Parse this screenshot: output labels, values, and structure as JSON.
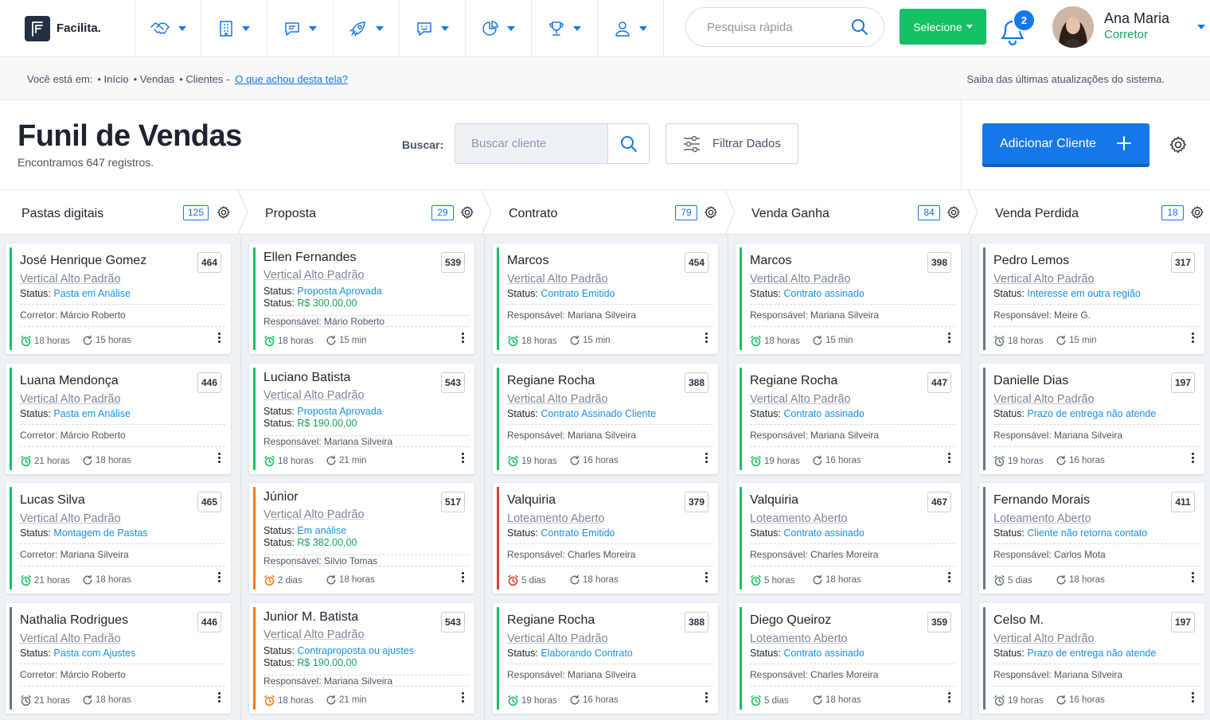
{
  "brand": {
    "name": "Facilita."
  },
  "nav": {
    "items": [
      {
        "icon": "handshake-icon"
      },
      {
        "icon": "building-icon"
      },
      {
        "icon": "message-icon"
      },
      {
        "icon": "rocket-icon"
      },
      {
        "icon": "chat-smile-icon"
      },
      {
        "icon": "pie-chart-icon"
      },
      {
        "icon": "trophy-icon"
      },
      {
        "icon": "user-icon"
      }
    ],
    "search_placeholder": "Pesquisa rápida",
    "select_label": "Selecione",
    "notifications_count": "2",
    "user": {
      "name": "Ana Maria",
      "role": "Corretor"
    }
  },
  "breadcrumb": {
    "prefix": "Você está em:",
    "items": [
      "• Início",
      "• Vendas",
      "• Clientes -"
    ],
    "feedback_link": "O que achou desta tela?",
    "updates": "Saiba das últimas atualizações do sistema."
  },
  "header": {
    "title": "Funil de Vendas",
    "subtitle": "Encontramos 647 registros.",
    "search_label": "Buscar:",
    "search_placeholder": "Buscar cliente",
    "filter_label": "Filtrar Dados",
    "add_label": "Adicionar Cliente"
  },
  "colors": {
    "accent": "#1677e8",
    "green": "#16c064",
    "orange": "#f07a1a",
    "red": "#e53935",
    "gray": "#6b7785"
  },
  "columns": [
    {
      "title": "Pastas digitais",
      "count": "125",
      "cards": [
        {
          "name": "José Henrique Gomez",
          "num": "464",
          "project": "Vertical Alto Padrão",
          "status_label": "Status:",
          "status": "Pasta em Análise",
          "person": "Corretor: Márcio Roberto",
          "time1": "18 horas",
          "time2": "15 horas",
          "accent": "green"
        },
        {
          "name": "Luana Mendonça",
          "num": "446",
          "project": "Vertical Alto Padrão",
          "status_label": "Status:",
          "status": "Pasta em Análise",
          "person": "Corretor: Márcio Roberto",
          "time1": "21 horas",
          "time2": "18 horas",
          "accent": "green"
        },
        {
          "name": "Lucas Silva",
          "num": "465",
          "project": "Vertical Alto Padrão",
          "status_label": "Status:",
          "status": "Montagem de Pastas",
          "person": "Corretor: Mariana Silveira",
          "time1": "21 horas",
          "time2": "18 horas",
          "accent": "green"
        },
        {
          "name": "Nathalia Rodrigues",
          "num": "446",
          "project": "Vertical Alto Padrão",
          "status_label": "Status:",
          "status": "Pasta com Ajustes",
          "person": "Corretor: Márcio Roberto",
          "time1": "21 horas",
          "time2": "18 horas",
          "accent": "gray"
        }
      ]
    },
    {
      "title": "Proposta",
      "count": "29",
      "cards": [
        {
          "name": "Ellen Fernandes",
          "num": "539",
          "project": "Vertical Alto Padrão",
          "status_label": "Status:",
          "status": "Proposta Aprovada",
          "value_label": "Status:",
          "value": "R$ 300.00,00",
          "person": "Responsável: Mário Roberto",
          "time1": "18 horas",
          "time2": "15 min",
          "accent": "green"
        },
        {
          "name": "Luciano Batista",
          "num": "543",
          "project": "Vertical Alto Padrão",
          "status_label": "Status:",
          "status": "Proposta Aprovada",
          "value_label": "Status:",
          "value": "R$ 190.00,00",
          "person": "Responsável: Mariana Silveira",
          "time1": "18 horas",
          "time2": "21 min",
          "accent": "green"
        },
        {
          "name": "Júnior",
          "num": "517",
          "project": "Vertical Alto Padrão",
          "status_label": "Status:",
          "status": "Em análise",
          "value_label": "Status:",
          "value": "R$ 382.00,00",
          "person": "Responsável:  Silvio Tomas",
          "time1": "2 dias",
          "time2": "18 horas",
          "accent": "orange"
        },
        {
          "name": "Junior M. Batista",
          "num": "543",
          "project": "Vertical Alto Padrão",
          "status_label": "Status:",
          "status": "Contraproposta ou ajustes",
          "value_label": "Status:",
          "value": "R$ 190.00,00",
          "person": "Responsável: Mariana Silveira",
          "time1": "18 horas",
          "time2": "21 min",
          "accent": "orange"
        }
      ]
    },
    {
      "title": "Contrato",
      "count": "79",
      "cards": [
        {
          "name": "Marcos",
          "num": "454",
          "project": "Vertical Alto Padrão",
          "status_label": "Status:",
          "status": "Contrato Emitido",
          "person": "Responsável: Mariana Silveira",
          "time1": "18 horas",
          "time2": "15 min",
          "accent": "green"
        },
        {
          "name": "Regiane Rocha",
          "num": "388",
          "project": "Vertical Alto Padrão",
          "status_label": "Status:",
          "status": "Contrato Assinado Cliente",
          "person": "Responsável: Mariana Silveira",
          "time1": "19 horas",
          "time2": "16 horas",
          "accent": "green"
        },
        {
          "name": "Valquiria",
          "num": "379",
          "project": "Loteamento Aberto",
          "status_label": "Status:",
          "status": "Contrato Emitido",
          "person": "Responsável: Charles Moreira",
          "time1": "5 dias",
          "time2": "18 horas",
          "accent": "red"
        },
        {
          "name": "Regiane Rocha",
          "num": "388",
          "project": "Vertical Alto Padrão",
          "status_label": "Status:",
          "status": "Elaborando Contrato",
          "person": "Responsável: Mariana Silveira",
          "time1": "19 horas",
          "time2": "16 horas",
          "accent": "green"
        }
      ]
    },
    {
      "title": "Venda Ganha",
      "count": "84",
      "cards": [
        {
          "name": "Marcos",
          "num": "398",
          "project": "Vertical Alto Padrão",
          "status_label": "Status:",
          "status": "Contrato assinado",
          "person": "Responsável: Mariana Silveira",
          "time1": "18 horas",
          "time2": "15 min",
          "accent": "green"
        },
        {
          "name": "Regiane Rocha",
          "num": "447",
          "project": "Vertical Alto Padrão",
          "status_label": "Status:",
          "status": "Contrato assinado",
          "person": "Responsável: Mariana Silveira",
          "time1": "19 horas",
          "time2": "16 horas",
          "accent": "green"
        },
        {
          "name": "Valquiria",
          "num": "467",
          "project": "Loteamento Aberto",
          "status_label": "Status:",
          "status": "Contrato assinado",
          "person": "Responsável: Charles Moreira",
          "time1": "5 horas",
          "time2": "18 horas",
          "accent": "green"
        },
        {
          "name": "Diego Queiroz",
          "num": "359",
          "project": "Loteamento Aberto",
          "status_label": "Status:",
          "status": "Contrato assinado",
          "person": "Responsável: Charles Moreira",
          "time1": "5 dias",
          "time2": "18 horas",
          "accent": "green"
        }
      ]
    },
    {
      "title": "Venda Perdida",
      "count": "18",
      "cards": [
        {
          "name": "Pedro Lemos",
          "num": "317",
          "project": "Vertical Alto Padrão",
          "status_label": "Status:",
          "status": "Interesse em outra região",
          "person": "Responsável: Meire G.",
          "time1": "18 horas",
          "time2": "15 min",
          "accent": "gray"
        },
        {
          "name": "Danielle Dias",
          "num": "197",
          "project": "Vertical Alto Padrão",
          "status_label": "Status:",
          "status": "Prazo de entrega não atende",
          "person": "Responsável: Mariana Silveira",
          "time1": "19 horas",
          "time2": "16 horas",
          "accent": "gray"
        },
        {
          "name": "Fernando Morais",
          "num": "411",
          "project": "Loteamento Aberto",
          "status_label": "Status:",
          "status": "Cliente não retorna contato",
          "person": "Responsável: Carlos Mota",
          "time1": "5 dias",
          "time2": "18 horas",
          "accent": "gray"
        },
        {
          "name": "Celso M.",
          "num": "197",
          "project": "Vertical Alto Padrão",
          "status_label": "Status:",
          "status": "Prazo de entrega não atende",
          "person": "Responsável: Mariana Silveira",
          "time1": "19 horas",
          "time2": "16 horas",
          "accent": "gray"
        }
      ]
    }
  ]
}
